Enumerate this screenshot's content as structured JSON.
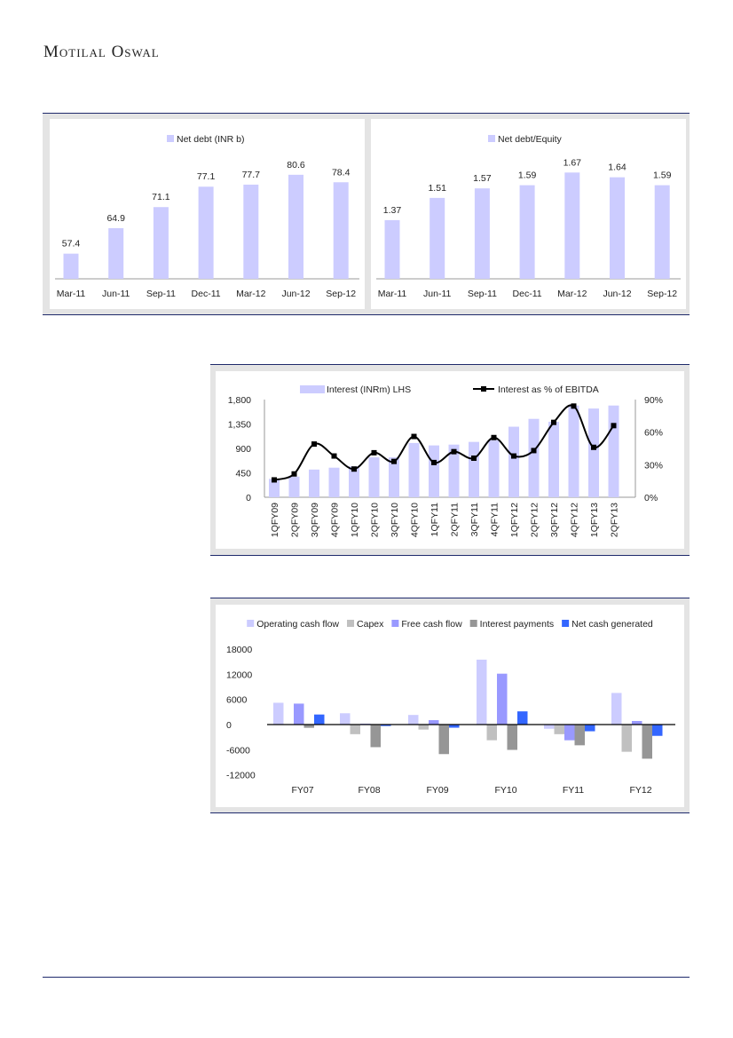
{
  "header": {
    "logo": "Motilal Oswal"
  },
  "colors": {
    "bar": "#ccccff",
    "line": "#000000",
    "capex": "#c0c0c0",
    "fcf": "#9999ff",
    "interest": "#969696",
    "net": "#3366ff",
    "rule": "#1f2a6b"
  },
  "chart_data": [
    {
      "type": "bar",
      "title": "",
      "legend": [
        "Net debt (INR b)"
      ],
      "categories": [
        "Mar-11",
        "Jun-11",
        "Sep-11",
        "Dec-11",
        "Mar-12",
        "Jun-12",
        "Sep-12"
      ],
      "values": [
        57.4,
        64.9,
        71.1,
        77.1,
        77.7,
        80.6,
        78.4
      ],
      "labels": [
        "57.4",
        "64.9",
        "71.1",
        "77.1",
        "77.7",
        "80.6",
        "78.4"
      ],
      "ylim": [
        50,
        85
      ]
    },
    {
      "type": "bar",
      "title": "",
      "legend": [
        "Net debt/Equity"
      ],
      "categories": [
        "Mar-11",
        "Jun-11",
        "Sep-11",
        "Dec-11",
        "Mar-12",
        "Jun-12",
        "Sep-12"
      ],
      "values": [
        1.37,
        1.51,
        1.57,
        1.59,
        1.67,
        1.64,
        1.59
      ],
      "labels": [
        "1.37",
        "1.51",
        "1.57",
        "1.59",
        "1.67",
        "1.64",
        "1.59"
      ],
      "ylim": [
        1.0,
        1.75
      ]
    },
    {
      "type": "bar+line",
      "legend": [
        "Interest (INRm) LHS",
        "Interest as % of EBITDA"
      ],
      "categories": [
        "1QFY09",
        "2QFY09",
        "3QFY09",
        "4QFY09",
        "1QFY10",
        "2QFY10",
        "3QFY10",
        "4QFY10",
        "1QFY11",
        "2QFY11",
        "3QFY11",
        "4QFY11",
        "1QFY12",
        "2QFY12",
        "3QFY12",
        "4QFY12",
        "1QFY13",
        "2QFY13"
      ],
      "series": [
        {
          "name": "Interest (INRm) LHS",
          "values": [
            340,
            380,
            510,
            545,
            570,
            735,
            735,
            1000,
            955,
            970,
            1020,
            1050,
            1300,
            1445,
            1390,
            1690,
            1635,
            1690
          ]
        },
        {
          "name": "Interest as % of EBITDA",
          "values": [
            16,
            21.5,
            49,
            38,
            26,
            41,
            33,
            56,
            32,
            42,
            36,
            55,
            38,
            43,
            69,
            84,
            46,
            66
          ]
        }
      ],
      "ylim": [
        0,
        1800
      ],
      "yticks": [
        "0",
        "450",
        "900",
        "1,350",
        "1,800"
      ],
      "y2lim": [
        0,
        90
      ],
      "y2ticks": [
        "0%",
        "30%",
        "60%",
        "90%"
      ]
    },
    {
      "type": "bar",
      "legend": [
        "Operating cash flow",
        "Capex",
        "Free cash flow",
        "Interest payments",
        "Net cash generated"
      ],
      "categories": [
        "FY07",
        "FY08",
        "FY09",
        "FY10",
        "FY11",
        "FY12"
      ],
      "series": [
        {
          "name": "Operating cash flow",
          "values": [
            5200,
            2700,
            2300,
            15500,
            -1000,
            7550
          ]
        },
        {
          "name": "Capex",
          "values": [
            0,
            -2300,
            -1200,
            -3750,
            -2300,
            -6500
          ]
        },
        {
          "name": "Free cash flow",
          "values": [
            5000,
            200,
            1050,
            12150,
            -3750,
            850
          ]
        },
        {
          "name": "Interest payments",
          "values": [
            -770,
            -5400,
            -7050,
            -6050,
            -4950,
            -8150
          ]
        },
        {
          "name": "Net cash generated",
          "values": [
            2400,
            -350,
            -750,
            3150,
            -1600,
            -2700
          ]
        }
      ],
      "ylim": [
        -12000,
        18000
      ],
      "yticks": [
        "-12000",
        "-6000",
        "0",
        "6000",
        "12000",
        "18000"
      ]
    }
  ]
}
